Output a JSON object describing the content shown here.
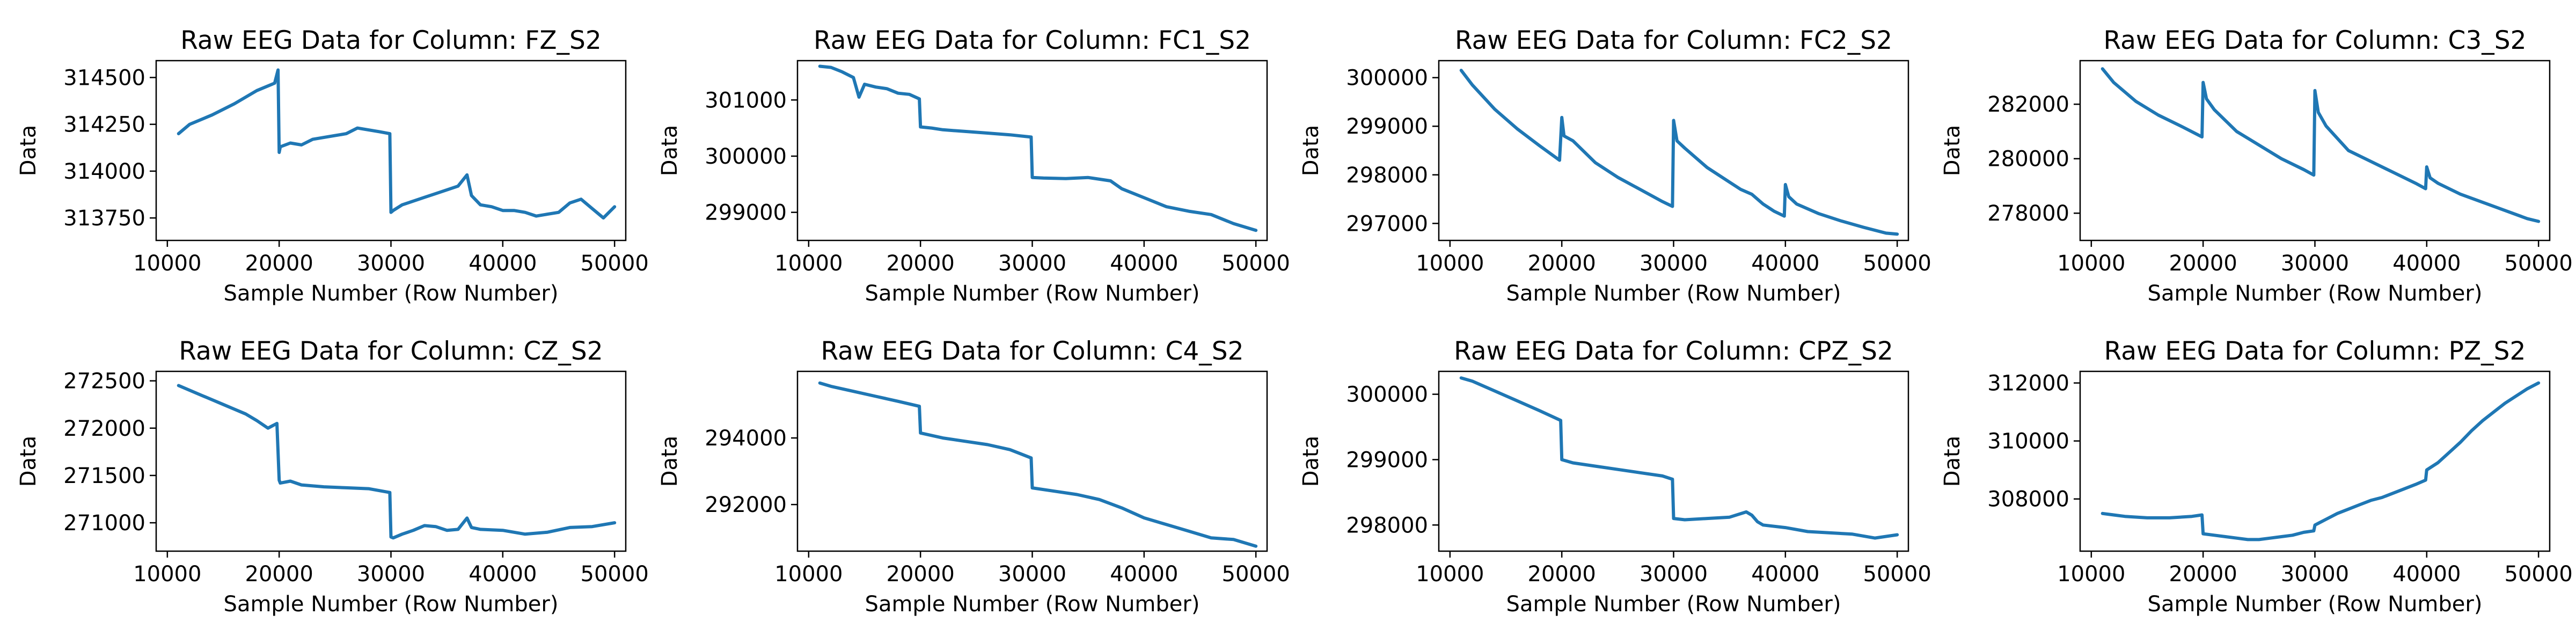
{
  "chart_data": [
    {
      "type": "line",
      "title": "Raw EEG Data for Column: FZ_S2",
      "xlabel": "Sample Number (Row Number)",
      "ylabel": "Data",
      "xlim": [
        9000,
        51000
      ],
      "ylim": [
        313630,
        314590
      ],
      "xticks": [
        10000,
        20000,
        30000,
        40000,
        50000
      ],
      "yticks": [
        313750,
        314000,
        314250,
        314500
      ],
      "color": "#1f77b4",
      "series": [
        {
          "x": [
            11000,
            12000,
            14000,
            16000,
            18000,
            19600,
            19900,
            20000,
            20100,
            21000,
            22000,
            23000,
            24000,
            25000,
            26000,
            27000,
            28000,
            29000,
            29900,
            30000,
            30200,
            31000,
            32000,
            33000,
            34000,
            35000,
            36000,
            36800,
            37200,
            38000,
            39000,
            40000,
            41000,
            42000,
            43000,
            44000,
            45000,
            46000,
            47000,
            48000,
            49000,
            50000
          ],
          "y": [
            314200,
            314250,
            314300,
            314360,
            314430,
            314470,
            314540,
            314100,
            314130,
            314150,
            314140,
            314170,
            314180,
            314190,
            314200,
            314230,
            314220,
            314210,
            314200,
            313780,
            313790,
            313820,
            313840,
            313860,
            313880,
            313900,
            313920,
            313980,
            313870,
            313820,
            313810,
            313790,
            313790,
            313780,
            313760,
            313770,
            313780,
            313830,
            313850,
            313800,
            313750,
            313810
          ]
        }
      ]
    },
    {
      "type": "line",
      "title": "Raw EEG Data for Column: FC1_S2",
      "xlabel": "Sample Number (Row Number)",
      "ylabel": "Data",
      "xlim": [
        9000,
        51000
      ],
      "ylim": [
        298500,
        301700
      ],
      "xticks": [
        10000,
        20000,
        30000,
        40000,
        50000
      ],
      "yticks": [
        299000,
        300000,
        301000
      ],
      "color": "#1f77b4",
      "series": [
        {
          "x": [
            11000,
            12000,
            13000,
            14000,
            14500,
            15000,
            16000,
            17000,
            18000,
            19000,
            19900,
            20000,
            21000,
            22000,
            24000,
            26000,
            28000,
            29900,
            30000,
            31000,
            33000,
            35000,
            36000,
            37000,
            38000,
            40000,
            42000,
            44000,
            46000,
            48000,
            50000
          ],
          "y": [
            301600,
            301580,
            301500,
            301400,
            301050,
            301280,
            301230,
            301200,
            301120,
            301100,
            301020,
            300520,
            300500,
            300470,
            300440,
            300410,
            300380,
            300340,
            299620,
            299610,
            299600,
            299620,
            299590,
            299560,
            299420,
            299260,
            299100,
            299020,
            298960,
            298800,
            298680
          ]
        }
      ]
    },
    {
      "type": "line",
      "title": "Raw EEG Data for Column: FC2_S2",
      "xlabel": "Sample Number (Row Number)",
      "ylabel": "Data",
      "xlim": [
        9000,
        51000
      ],
      "ylim": [
        296650,
        300350
      ],
      "xticks": [
        10000,
        20000,
        30000,
        40000,
        50000
      ],
      "yticks": [
        297000,
        298000,
        299000,
        300000
      ],
      "color": "#1f77b4",
      "series": [
        {
          "x": [
            11000,
            12000,
            14000,
            16000,
            18000,
            19800,
            20000,
            20200,
            21000,
            23000,
            25000,
            27000,
            29000,
            29900,
            30000,
            30300,
            31000,
            33000,
            35000,
            36000,
            37000,
            38000,
            39000,
            39900,
            40000,
            40300,
            41000,
            43000,
            45000,
            47000,
            49000,
            50000
          ],
          "y": [
            300150,
            299850,
            299350,
            298950,
            298600,
            298300,
            299180,
            298800,
            298700,
            298250,
            297950,
            297700,
            297450,
            297350,
            299120,
            298700,
            298550,
            298150,
            297850,
            297700,
            297600,
            297400,
            297250,
            297150,
            297800,
            297550,
            297400,
            297200,
            297050,
            296920,
            296800,
            296780
          ]
        }
      ]
    },
    {
      "type": "line",
      "title": "Raw EEG Data for Column: C3_S2",
      "xlabel": "Sample Number (Row Number)",
      "ylabel": "Data",
      "xlim": [
        9000,
        51000
      ],
      "ylim": [
        277000,
        283600
      ],
      "xticks": [
        10000,
        20000,
        30000,
        40000,
        50000
      ],
      "yticks": [
        278000,
        280000,
        282000
      ],
      "color": "#1f77b4",
      "series": [
        {
          "x": [
            11000,
            12000,
            14000,
            16000,
            18000,
            19900,
            20000,
            20300,
            21000,
            23000,
            25000,
            27000,
            29000,
            29900,
            30000,
            30300,
            31000,
            33000,
            35000,
            37000,
            39000,
            39900,
            40000,
            40300,
            41000,
            43000,
            45000,
            47000,
            49000,
            50000
          ],
          "y": [
            283300,
            282800,
            282100,
            281600,
            281200,
            280800,
            282800,
            282200,
            281800,
            281000,
            280500,
            280000,
            279600,
            279400,
            282500,
            281700,
            281200,
            280300,
            279900,
            279500,
            279100,
            278900,
            279700,
            279300,
            279100,
            278700,
            278400,
            278100,
            277800,
            277700
          ]
        }
      ]
    },
    {
      "type": "line",
      "title": "Raw EEG Data for Column: CZ_S2",
      "xlabel": "Sample Number (Row Number)",
      "ylabel": "Data",
      "xlim": [
        9000,
        51000
      ],
      "ylim": [
        270700,
        272600
      ],
      "xticks": [
        10000,
        20000,
        30000,
        40000,
        50000
      ],
      "yticks": [
        271000,
        271500,
        272000,
        272500
      ],
      "color": "#1f77b4",
      "series": [
        {
          "x": [
            11000,
            12000,
            13000,
            14000,
            15000,
            16000,
            17000,
            18000,
            19000,
            19800,
            20000,
            20100,
            21000,
            22000,
            24000,
            26000,
            28000,
            29900,
            30000,
            30200,
            31000,
            32000,
            33000,
            34000,
            35000,
            36000,
            36800,
            37200,
            38000,
            40000,
            42000,
            44000,
            46000,
            48000,
            50000
          ],
          "y": [
            272450,
            272400,
            272350,
            272300,
            272250,
            272200,
            272150,
            272080,
            272000,
            272050,
            271450,
            271420,
            271440,
            271400,
            271380,
            271370,
            271360,
            271320,
            270850,
            270840,
            270880,
            270920,
            270970,
            270960,
            270920,
            270930,
            271050,
            270950,
            270930,
            270920,
            270880,
            270900,
            270950,
            270960,
            271000
          ]
        }
      ]
    },
    {
      "type": "line",
      "title": "Raw EEG Data for Column: C4_S2",
      "xlabel": "Sample Number (Row Number)",
      "ylabel": "Data",
      "xlim": [
        9000,
        51000
      ],
      "ylim": [
        290600,
        296000
      ],
      "xticks": [
        10000,
        20000,
        30000,
        40000,
        50000
      ],
      "yticks": [
        292000,
        294000
      ],
      "color": "#1f77b4",
      "series": [
        {
          "x": [
            11000,
            12000,
            14000,
            16000,
            18000,
            19900,
            20000,
            22000,
            24000,
            26000,
            28000,
            29900,
            30000,
            32000,
            34000,
            36000,
            38000,
            40000,
            42000,
            44000,
            46000,
            48000,
            50000
          ],
          "y": [
            295650,
            295550,
            295400,
            295250,
            295100,
            294950,
            294150,
            294000,
            293900,
            293800,
            293650,
            293400,
            292500,
            292400,
            292300,
            292150,
            291900,
            291600,
            291400,
            291200,
            291000,
            290950,
            290750
          ]
        }
      ]
    },
    {
      "type": "line",
      "title": "Raw EEG Data for Column: CPZ_S2",
      "xlabel": "Sample Number (Row Number)",
      "ylabel": "Data",
      "xlim": [
        9000,
        51000
      ],
      "ylim": [
        297600,
        300350
      ],
      "xticks": [
        10000,
        20000,
        30000,
        40000,
        50000
      ],
      "yticks": [
        298000,
        299000,
        300000
      ],
      "color": "#1f77b4",
      "series": [
        {
          "x": [
            11000,
            12000,
            14000,
            16000,
            18000,
            19900,
            20000,
            21000,
            23000,
            25000,
            27000,
            29000,
            29900,
            30000,
            31000,
            33000,
            35000,
            36500,
            37000,
            37500,
            38000,
            40000,
            42000,
            44000,
            46000,
            48000,
            50000
          ],
          "y": [
            300250,
            300200,
            300050,
            299900,
            299750,
            299600,
            299000,
            298950,
            298900,
            298850,
            298800,
            298750,
            298700,
            298100,
            298080,
            298100,
            298120,
            298200,
            298150,
            298050,
            298000,
            297960,
            297900,
            297880,
            297860,
            297800,
            297850
          ]
        }
      ]
    },
    {
      "type": "line",
      "title": "Raw EEG Data for Column: PZ_S2",
      "xlabel": "Sample Number (Row Number)",
      "ylabel": "Data",
      "xlim": [
        9000,
        51000
      ],
      "ylim": [
        306200,
        312400
      ],
      "xticks": [
        10000,
        20000,
        30000,
        40000,
        50000
      ],
      "yticks": [
        308000,
        310000,
        312000
      ],
      "color": "#1f77b4",
      "series": [
        {
          "x": [
            11000,
            13000,
            15000,
            17000,
            19000,
            19900,
            20000,
            21000,
            22000,
            23000,
            24000,
            25000,
            26000,
            27000,
            28000,
            29000,
            29900,
            30000,
            31000,
            32000,
            33000,
            34000,
            35000,
            36000,
            37000,
            38000,
            39000,
            39900,
            40000,
            41000,
            42000,
            43000,
            44000,
            45000,
            46000,
            47000,
            48000,
            49000,
            50000
          ],
          "y": [
            307500,
            307400,
            307350,
            307350,
            307400,
            307450,
            306800,
            306750,
            306700,
            306650,
            306600,
            306600,
            306650,
            306700,
            306750,
            306850,
            306900,
            307100,
            307300,
            307500,
            307650,
            307800,
            307950,
            308050,
            308200,
            308350,
            308500,
            308650,
            309000,
            309250,
            309600,
            309950,
            310350,
            310700,
            311000,
            311300,
            311550,
            311800,
            312000
          ]
        }
      ]
    }
  ]
}
